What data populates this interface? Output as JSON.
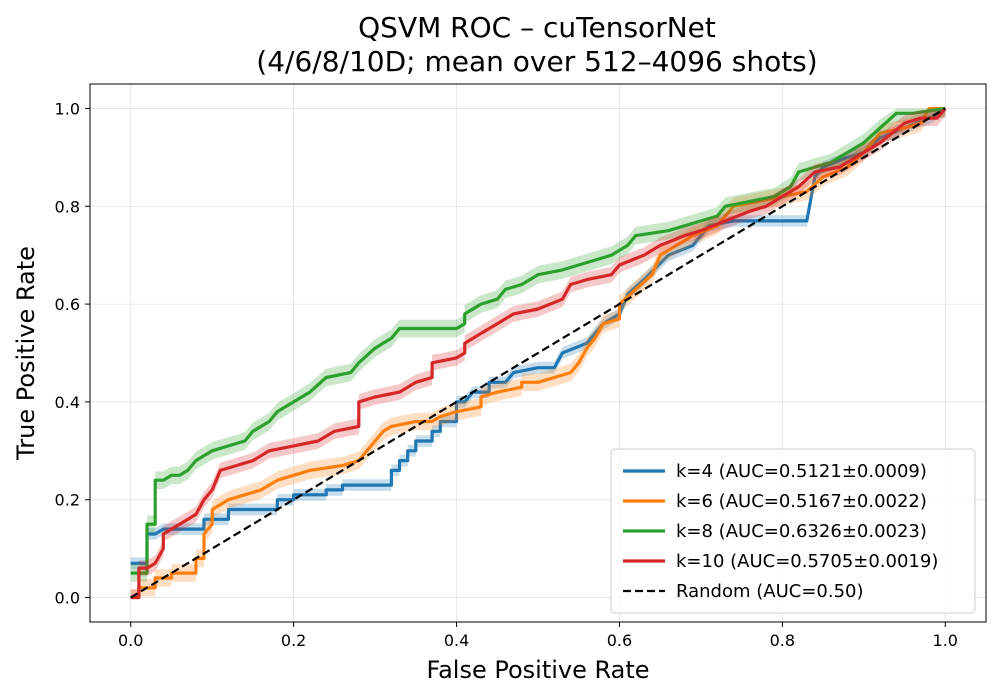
{
  "chart_data": {
    "type": "line",
    "title_lines": [
      "QSVM ROC – cuTensorNet",
      "(4/6/8/10D; mean over 512–4096 shots)"
    ],
    "xlabel": "False Positive Rate",
    "ylabel": "True Positive Rate",
    "xlim": [
      -0.05,
      1.05
    ],
    "ylim": [
      -0.05,
      1.05
    ],
    "xticks": [
      0.0,
      0.2,
      0.4,
      0.6,
      0.8,
      1.0
    ],
    "yticks": [
      0.0,
      0.2,
      0.4,
      0.6,
      0.8,
      1.0
    ],
    "xtick_labels": [
      "0.0",
      "0.2",
      "0.4",
      "0.6",
      "0.8",
      "1.0"
    ],
    "ytick_labels": [
      "0.0",
      "0.2",
      "0.4",
      "0.6",
      "0.8",
      "1.0"
    ],
    "grid": true,
    "legend_position": "lower-right",
    "series": [
      {
        "name": "k=4 (AUC=0.5121±0.0009)",
        "color": "#1f77b4",
        "band": 0.012,
        "points": [
          [
            0.0,
            0.07
          ],
          [
            0.02,
            0.07
          ],
          [
            0.02,
            0.13
          ],
          [
            0.03,
            0.13
          ],
          [
            0.04,
            0.14
          ],
          [
            0.09,
            0.14
          ],
          [
            0.09,
            0.16
          ],
          [
            0.12,
            0.16
          ],
          [
            0.12,
            0.18
          ],
          [
            0.18,
            0.18
          ],
          [
            0.18,
            0.2
          ],
          [
            0.2,
            0.2
          ],
          [
            0.2,
            0.21
          ],
          [
            0.24,
            0.21
          ],
          [
            0.24,
            0.22
          ],
          [
            0.26,
            0.22
          ],
          [
            0.26,
            0.23
          ],
          [
            0.32,
            0.23
          ],
          [
            0.32,
            0.26
          ],
          [
            0.33,
            0.26
          ],
          [
            0.33,
            0.28
          ],
          [
            0.34,
            0.28
          ],
          [
            0.34,
            0.3
          ],
          [
            0.35,
            0.3
          ],
          [
            0.35,
            0.32
          ],
          [
            0.37,
            0.32
          ],
          [
            0.37,
            0.34
          ],
          [
            0.38,
            0.34
          ],
          [
            0.38,
            0.36
          ],
          [
            0.4,
            0.36
          ],
          [
            0.4,
            0.4
          ],
          [
            0.41,
            0.4
          ],
          [
            0.42,
            0.42
          ],
          [
            0.44,
            0.42
          ],
          [
            0.44,
            0.44
          ],
          [
            0.46,
            0.44
          ],
          [
            0.47,
            0.46
          ],
          [
            0.5,
            0.47
          ],
          [
            0.52,
            0.47
          ],
          [
            0.53,
            0.5
          ],
          [
            0.56,
            0.52
          ],
          [
            0.58,
            0.56
          ],
          [
            0.6,
            0.58
          ],
          [
            0.61,
            0.62
          ],
          [
            0.63,
            0.65
          ],
          [
            0.66,
            0.7
          ],
          [
            0.69,
            0.72
          ],
          [
            0.71,
            0.76
          ],
          [
            0.74,
            0.77
          ],
          [
            0.78,
            0.77
          ],
          [
            0.83,
            0.77
          ],
          [
            0.84,
            0.86
          ],
          [
            0.85,
            0.88
          ],
          [
            0.88,
            0.9
          ],
          [
            0.9,
            0.91
          ],
          [
            0.92,
            0.94
          ],
          [
            0.95,
            0.96
          ],
          [
            0.98,
            0.98
          ],
          [
            1.0,
            1.0
          ]
        ]
      },
      {
        "name": "k=6 (AUC=0.5167±0.0022)",
        "color": "#ff7f0e",
        "band": 0.018,
        "points": [
          [
            0.0,
            0.0
          ],
          [
            0.01,
            0.0
          ],
          [
            0.01,
            0.02
          ],
          [
            0.03,
            0.02
          ],
          [
            0.03,
            0.04
          ],
          [
            0.05,
            0.04
          ],
          [
            0.05,
            0.05
          ],
          [
            0.08,
            0.05
          ],
          [
            0.08,
            0.08
          ],
          [
            0.09,
            0.08
          ],
          [
            0.09,
            0.13
          ],
          [
            0.1,
            0.15
          ],
          [
            0.1,
            0.18
          ],
          [
            0.12,
            0.2
          ],
          [
            0.14,
            0.21
          ],
          [
            0.16,
            0.22
          ],
          [
            0.18,
            0.24
          ],
          [
            0.2,
            0.25
          ],
          [
            0.22,
            0.26
          ],
          [
            0.26,
            0.27
          ],
          [
            0.28,
            0.28
          ],
          [
            0.29,
            0.3
          ],
          [
            0.3,
            0.32
          ],
          [
            0.31,
            0.34
          ],
          [
            0.32,
            0.35
          ],
          [
            0.35,
            0.36
          ],
          [
            0.37,
            0.36
          ],
          [
            0.38,
            0.37
          ],
          [
            0.4,
            0.38
          ],
          [
            0.43,
            0.39
          ],
          [
            0.43,
            0.41
          ],
          [
            0.45,
            0.42
          ],
          [
            0.48,
            0.43
          ],
          [
            0.48,
            0.44
          ],
          [
            0.5,
            0.44
          ],
          [
            0.52,
            0.45
          ],
          [
            0.54,
            0.46
          ],
          [
            0.55,
            0.48
          ],
          [
            0.56,
            0.51
          ],
          [
            0.57,
            0.53
          ],
          [
            0.58,
            0.56
          ],
          [
            0.6,
            0.57
          ],
          [
            0.6,
            0.6
          ],
          [
            0.62,
            0.63
          ],
          [
            0.64,
            0.66
          ],
          [
            0.65,
            0.7
          ],
          [
            0.67,
            0.72
          ],
          [
            0.69,
            0.74
          ],
          [
            0.72,
            0.76
          ],
          [
            0.74,
            0.8
          ],
          [
            0.77,
            0.81
          ],
          [
            0.8,
            0.82
          ],
          [
            0.83,
            0.83
          ],
          [
            0.85,
            0.86
          ],
          [
            0.88,
            0.88
          ],
          [
            0.9,
            0.91
          ],
          [
            0.92,
            0.95
          ],
          [
            0.95,
            0.96
          ],
          [
            0.97,
            0.97
          ],
          [
            0.98,
            1.0
          ],
          [
            1.0,
            1.0
          ]
        ]
      },
      {
        "name": "k=8 (AUC=0.6326±0.0023)",
        "color": "#2ca02c",
        "band": 0.018,
        "points": [
          [
            0.0,
            0.05
          ],
          [
            0.02,
            0.05
          ],
          [
            0.02,
            0.15
          ],
          [
            0.03,
            0.15
          ],
          [
            0.03,
            0.24
          ],
          [
            0.04,
            0.24
          ],
          [
            0.05,
            0.25
          ],
          [
            0.06,
            0.25
          ],
          [
            0.07,
            0.26
          ],
          [
            0.08,
            0.28
          ],
          [
            0.1,
            0.3
          ],
          [
            0.12,
            0.31
          ],
          [
            0.14,
            0.32
          ],
          [
            0.15,
            0.34
          ],
          [
            0.17,
            0.36
          ],
          [
            0.18,
            0.38
          ],
          [
            0.2,
            0.4
          ],
          [
            0.22,
            0.42
          ],
          [
            0.24,
            0.45
          ],
          [
            0.27,
            0.46
          ],
          [
            0.28,
            0.48
          ],
          [
            0.3,
            0.51
          ],
          [
            0.32,
            0.53
          ],
          [
            0.33,
            0.55
          ],
          [
            0.4,
            0.55
          ],
          [
            0.41,
            0.56
          ],
          [
            0.41,
            0.58
          ],
          [
            0.43,
            0.6
          ],
          [
            0.45,
            0.61
          ],
          [
            0.46,
            0.63
          ],
          [
            0.48,
            0.64
          ],
          [
            0.5,
            0.66
          ],
          [
            0.53,
            0.67
          ],
          [
            0.55,
            0.68
          ],
          [
            0.57,
            0.69
          ],
          [
            0.59,
            0.7
          ],
          [
            0.61,
            0.72
          ],
          [
            0.62,
            0.74
          ],
          [
            0.66,
            0.75
          ],
          [
            0.68,
            0.76
          ],
          [
            0.7,
            0.77
          ],
          [
            0.72,
            0.78
          ],
          [
            0.73,
            0.8
          ],
          [
            0.76,
            0.81
          ],
          [
            0.79,
            0.82
          ],
          [
            0.81,
            0.84
          ],
          [
            0.82,
            0.87
          ],
          [
            0.84,
            0.88
          ],
          [
            0.86,
            0.89
          ],
          [
            0.88,
            0.91
          ],
          [
            0.9,
            0.93
          ],
          [
            0.92,
            0.96
          ],
          [
            0.94,
            0.99
          ],
          [
            0.96,
            0.99
          ],
          [
            1.0,
            1.0
          ]
        ]
      },
      {
        "name": "k=10 (AUC=0.5705±0.0019)",
        "color": "#d62728",
        "band": 0.016,
        "points": [
          [
            0.0,
            0.0
          ],
          [
            0.01,
            0.0
          ],
          [
            0.01,
            0.06
          ],
          [
            0.02,
            0.06
          ],
          [
            0.03,
            0.07
          ],
          [
            0.04,
            0.1
          ],
          [
            0.04,
            0.13
          ],
          [
            0.06,
            0.15
          ],
          [
            0.08,
            0.17
          ],
          [
            0.09,
            0.2
          ],
          [
            0.1,
            0.22
          ],
          [
            0.11,
            0.26
          ],
          [
            0.13,
            0.27
          ],
          [
            0.15,
            0.28
          ],
          [
            0.17,
            0.3
          ],
          [
            0.2,
            0.31
          ],
          [
            0.23,
            0.32
          ],
          [
            0.25,
            0.34
          ],
          [
            0.28,
            0.35
          ],
          [
            0.28,
            0.4
          ],
          [
            0.3,
            0.41
          ],
          [
            0.33,
            0.42
          ],
          [
            0.35,
            0.44
          ],
          [
            0.37,
            0.45
          ],
          [
            0.37,
            0.48
          ],
          [
            0.4,
            0.49
          ],
          [
            0.41,
            0.5
          ],
          [
            0.41,
            0.52
          ],
          [
            0.43,
            0.54
          ],
          [
            0.45,
            0.56
          ],
          [
            0.47,
            0.58
          ],
          [
            0.5,
            0.59
          ],
          [
            0.53,
            0.61
          ],
          [
            0.54,
            0.64
          ],
          [
            0.56,
            0.65
          ],
          [
            0.59,
            0.66
          ],
          [
            0.6,
            0.68
          ],
          [
            0.63,
            0.7
          ],
          [
            0.65,
            0.72
          ],
          [
            0.68,
            0.74
          ],
          [
            0.7,
            0.75
          ],
          [
            0.73,
            0.77
          ],
          [
            0.76,
            0.79
          ],
          [
            0.78,
            0.8
          ],
          [
            0.8,
            0.82
          ],
          [
            0.82,
            0.84
          ],
          [
            0.84,
            0.87
          ],
          [
            0.87,
            0.88
          ],
          [
            0.9,
            0.91
          ],
          [
            0.92,
            0.93
          ],
          [
            0.95,
            0.97
          ],
          [
            0.97,
            0.98
          ],
          [
            0.99,
            0.98
          ],
          [
            1.0,
            1.0
          ]
        ]
      },
      {
        "name": "Random (AUC=0.50)",
        "color": "#000000",
        "dashed": true,
        "points": [
          [
            0.0,
            0.0
          ],
          [
            1.0,
            1.0
          ]
        ]
      }
    ]
  }
}
